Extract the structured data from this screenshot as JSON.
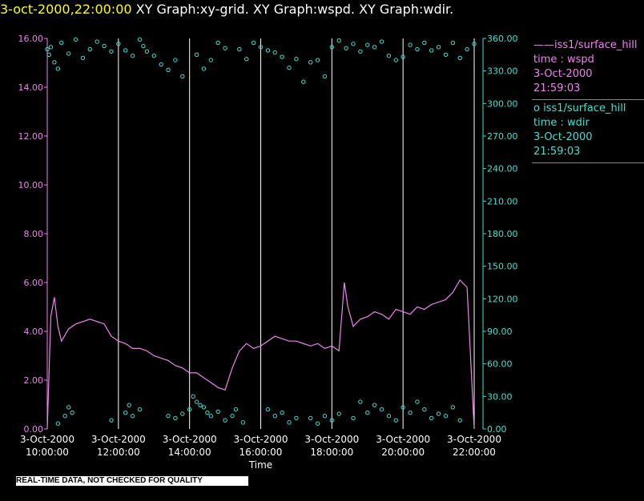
{
  "header": {
    "timestamp": "3-oct-2000,22:00:00",
    "graphs": "XY Graph:xy-grid.  XY Graph:wspd.  XY Graph:wdir."
  },
  "colors": {
    "wspd": "#ee82ee",
    "wdir": "#40e0d0",
    "grid": "#ffffff",
    "bg": "#000000"
  },
  "legend": {
    "wspd": {
      "series": "iss1/surface_hill",
      "var": "time : wspd",
      "date": "3-Oct-2000",
      "time": "21:59:03"
    },
    "wdir": {
      "series": "iss1/surface_hill",
      "var": "time : wdir",
      "date": "3-Oct-2000",
      "time": "21:59:03"
    }
  },
  "footer_note": "REAL-TIME DATA, NOT CHECKED FOR QUALITY",
  "chart_data": {
    "type": "line",
    "xlabel": "Time",
    "xlim": [
      10,
      22
    ],
    "x_ticks": [
      {
        "value": 10,
        "date": "3-Oct-2000",
        "time": "10:00:00"
      },
      {
        "value": 12,
        "date": "3-Oct-2000",
        "time": "12:00:00"
      },
      {
        "value": 14,
        "date": "3-Oct-2000",
        "time": "14:00:00"
      },
      {
        "value": 16,
        "date": "3-Oct-2000",
        "time": "16:00:00"
      },
      {
        "value": 18,
        "date": "3-Oct-2000",
        "time": "18:00:00"
      },
      {
        "value": 20,
        "date": "3-Oct-2000",
        "time": "20:00:00"
      },
      {
        "value": 22,
        "date": "3-Oct-2000",
        "time": "22:00:00"
      }
    ],
    "y_left": {
      "name": "wspd",
      "lim": [
        0,
        16
      ],
      "ticks": [
        "0.00",
        "2.00",
        "4.00",
        "6.00",
        "8.00",
        "10.00",
        "12.00",
        "14.00",
        "16.00"
      ]
    },
    "y_right": {
      "name": "wdir",
      "lim": [
        0,
        360
      ],
      "ticks": [
        "0.00",
        "30.00",
        "60.00",
        "90.00",
        "120.00",
        "150.00",
        "180.00",
        "210.00",
        "240.00",
        "270.00",
        "300.00",
        "330.00",
        "360.00"
      ]
    },
    "series": [
      {
        "name": "wspd",
        "axis": "left",
        "style": "line",
        "x": [
          10.0,
          10.1,
          10.2,
          10.3,
          10.4,
          10.6,
          10.8,
          11.0,
          11.2,
          11.4,
          11.6,
          11.8,
          12.0,
          12.2,
          12.4,
          12.6,
          12.8,
          13.0,
          13.2,
          13.4,
          13.6,
          13.8,
          14.0,
          14.2,
          14.4,
          14.6,
          14.8,
          15.0,
          15.2,
          15.4,
          15.6,
          15.8,
          16.0,
          16.2,
          16.4,
          16.6,
          16.8,
          17.0,
          17.2,
          17.4,
          17.6,
          17.8,
          18.0,
          18.2,
          18.35,
          18.45,
          18.6,
          18.8,
          19.0,
          19.2,
          19.4,
          19.6,
          19.8,
          20.0,
          20.2,
          20.4,
          20.6,
          20.8,
          21.0,
          21.2,
          21.4,
          21.6,
          21.8,
          22.0
        ],
        "y": [
          0.0,
          4.6,
          5.4,
          4.2,
          3.6,
          4.1,
          4.3,
          4.4,
          4.5,
          4.4,
          4.3,
          3.8,
          3.6,
          3.5,
          3.3,
          3.3,
          3.2,
          3.0,
          2.9,
          2.8,
          2.6,
          2.5,
          2.3,
          2.3,
          2.1,
          1.9,
          1.7,
          1.6,
          2.5,
          3.2,
          3.5,
          3.3,
          3.4,
          3.6,
          3.8,
          3.7,
          3.6,
          3.6,
          3.5,
          3.4,
          3.5,
          3.3,
          3.4,
          3.2,
          6.0,
          5.0,
          4.2,
          4.5,
          4.6,
          4.8,
          4.7,
          4.5,
          4.9,
          4.8,
          4.7,
          5.0,
          4.9,
          5.1,
          5.2,
          5.3,
          5.6,
          6.1,
          5.8,
          0.0
        ]
      },
      {
        "name": "wdir",
        "axis": "right",
        "style": "markers",
        "x": [
          10.0,
          10.05,
          10.1,
          10.2,
          10.3,
          10.4,
          10.6,
          10.8,
          11.0,
          11.2,
          11.4,
          11.6,
          11.8,
          12.0,
          12.2,
          12.4,
          12.6,
          12.7,
          12.8,
          13.0,
          13.2,
          13.4,
          13.6,
          13.8,
          14.2,
          14.4,
          14.6,
          14.8,
          15.0,
          15.4,
          15.6,
          15.8,
          16.0,
          16.2,
          16.4,
          16.6,
          16.8,
          17.0,
          17.2,
          17.4,
          17.6,
          17.8,
          18.0,
          18.2,
          18.4,
          18.6,
          18.8,
          19.0,
          19.2,
          19.4,
          19.6,
          19.8,
          20.0,
          20.2,
          20.4,
          20.6,
          20.8,
          21.0,
          21.2,
          21.4,
          21.6,
          21.8,
          22.0
        ],
        "y": [
          350,
          345,
          352,
          338,
          332,
          356,
          346,
          359,
          342,
          350,
          357,
          353,
          348,
          355,
          349,
          344,
          359,
          353,
          348,
          344,
          336,
          331,
          340,
          325,
          345,
          332,
          340,
          356,
          351,
          350,
          341,
          356,
          352,
          349,
          347,
          343,
          333,
          341,
          320,
          338,
          340,
          325,
          352,
          358,
          351,
          355,
          348,
          354,
          352,
          357,
          344,
          340,
          343,
          354,
          350,
          356,
          349,
          352,
          345,
          356,
          342,
          350,
          355
        ]
      },
      {
        "name": "wdir_low",
        "axis": "right",
        "style": "markers",
        "x": [
          10.3,
          10.5,
          10.6,
          10.7,
          11.8,
          12.2,
          12.3,
          12.4,
          12.6,
          13.4,
          13.6,
          13.8,
          14.0,
          14.1,
          14.2,
          14.3,
          14.4,
          14.5,
          14.6,
          14.8,
          15.0,
          15.2,
          15.3,
          15.5,
          16.2,
          16.4,
          16.6,
          16.8,
          17.0,
          17.4,
          17.6,
          17.8,
          18.0,
          18.2,
          18.6,
          18.8,
          19.0,
          19.2,
          19.4,
          19.6,
          19.8,
          20.0,
          20.2,
          20.4,
          20.6,
          20.8,
          21.0,
          21.2,
          21.4,
          21.6
        ],
        "y": [
          5,
          12,
          20,
          15,
          8,
          15,
          22,
          12,
          18,
          12,
          10,
          14,
          18,
          30,
          25,
          22,
          20,
          15,
          12,
          16,
          8,
          12,
          18,
          6,
          18,
          12,
          15,
          6,
          10,
          10,
          5,
          12,
          8,
          14,
          10,
          25,
          15,
          22,
          18,
          12,
          8,
          20,
          15,
          25,
          18,
          10,
          14,
          12,
          20,
          8
        ]
      }
    ]
  }
}
